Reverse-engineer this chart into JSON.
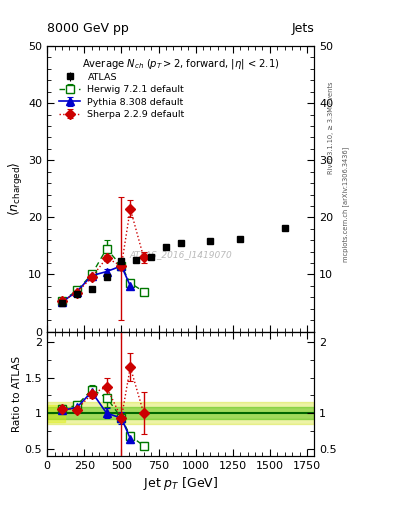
{
  "atlas_x": [
    100,
    200,
    300,
    400,
    500,
    600,
    700,
    800,
    900,
    1100,
    1300,
    1600
  ],
  "atlas_y": [
    5.0,
    6.5,
    7.5,
    9.5,
    12.3,
    12.5,
    13.0,
    14.8,
    15.5,
    15.8,
    16.2,
    18.2
  ],
  "atlas_yerr": [
    0.25,
    0.25,
    0.3,
    0.35,
    0.4,
    0.4,
    0.4,
    0.4,
    0.5,
    0.5,
    0.5,
    0.5
  ],
  "herwig_x": [
    100,
    200,
    300,
    400,
    500,
    560,
    650
  ],
  "herwig_y": [
    5.3,
    7.2,
    10.0,
    14.5,
    11.5,
    8.5,
    7.0
  ],
  "herwig_yerr": [
    0.3,
    0.3,
    0.4,
    1.5,
    0.5,
    0.5,
    0.5
  ],
  "pythia_x": [
    100,
    200,
    300,
    400,
    500,
    560
  ],
  "pythia_y": [
    5.2,
    7.0,
    9.8,
    10.5,
    11.5,
    8.0
  ],
  "pythia_yerr": [
    0.25,
    0.25,
    0.35,
    0.5,
    0.7,
    0.5
  ],
  "sherpa_x": [
    100,
    200,
    300,
    400,
    500,
    560,
    650
  ],
  "sherpa_y": [
    5.3,
    6.8,
    9.5,
    12.9,
    11.5,
    21.5,
    13.0
  ],
  "sherpa_yerr_lo": [
    0.3,
    0.3,
    0.4,
    0.5,
    9.5,
    1.5,
    1.0
  ],
  "sherpa_yerr_hi": [
    0.3,
    0.3,
    0.4,
    0.5,
    12.0,
    1.5,
    1.0
  ],
  "rh_x": [
    100,
    200,
    300,
    400,
    500,
    560,
    650
  ],
  "rh_y": [
    1.06,
    1.11,
    1.33,
    1.22,
    0.93,
    0.68,
    0.54
  ],
  "rh_yerr": [
    0.06,
    0.06,
    0.07,
    0.14,
    0.05,
    0.05,
    0.05
  ],
  "rp_x": [
    100,
    200,
    300,
    400,
    500,
    560
  ],
  "rp_y": [
    1.04,
    1.08,
    1.3,
    1.0,
    0.93,
    0.64
  ],
  "rp_yerr": [
    0.05,
    0.05,
    0.06,
    0.07,
    0.08,
    0.06
  ],
  "rs_x": [
    100,
    200,
    300,
    400,
    500,
    560,
    650
  ],
  "rs_y": [
    1.06,
    1.05,
    1.27,
    1.37,
    0.93,
    1.65,
    1.0
  ],
  "rs_yerr_lo": [
    0.05,
    0.05,
    0.05,
    0.12,
    9.0,
    0.2,
    0.3
  ],
  "rs_yerr_hi": [
    0.05,
    0.05,
    0.05,
    0.12,
    12.0,
    0.2,
    0.3
  ],
  "atlas_color": "#000000",
  "herwig_color": "#007700",
  "pythia_color": "#0000cc",
  "sherpa_color": "#cc0000",
  "xlim": [
    0,
    1800
  ],
  "ylim_main": [
    0,
    50
  ],
  "ylim_ratio": [
    0.4,
    2.15
  ],
  "xlabel": "Jet $p_T$ [GeV]",
  "ylabel_main": "$\\langle n_\\mathrm{charged} \\rangle$",
  "ylabel_ratio": "Ratio to ATLAS",
  "title_top": "8000 GeV pp",
  "title_right": "Jets",
  "plot_title": "Average $N_{ch}$ ($p_T$$>$2, forward, $|\\eta|$ < 2.1)",
  "watermark": "ATLAS_2016_I1419070",
  "right_label1": "Rivet 3.1.10, ≥ 3.3M events",
  "right_label2": "mcplots.cern.ch [arXiv:1306.3436]"
}
